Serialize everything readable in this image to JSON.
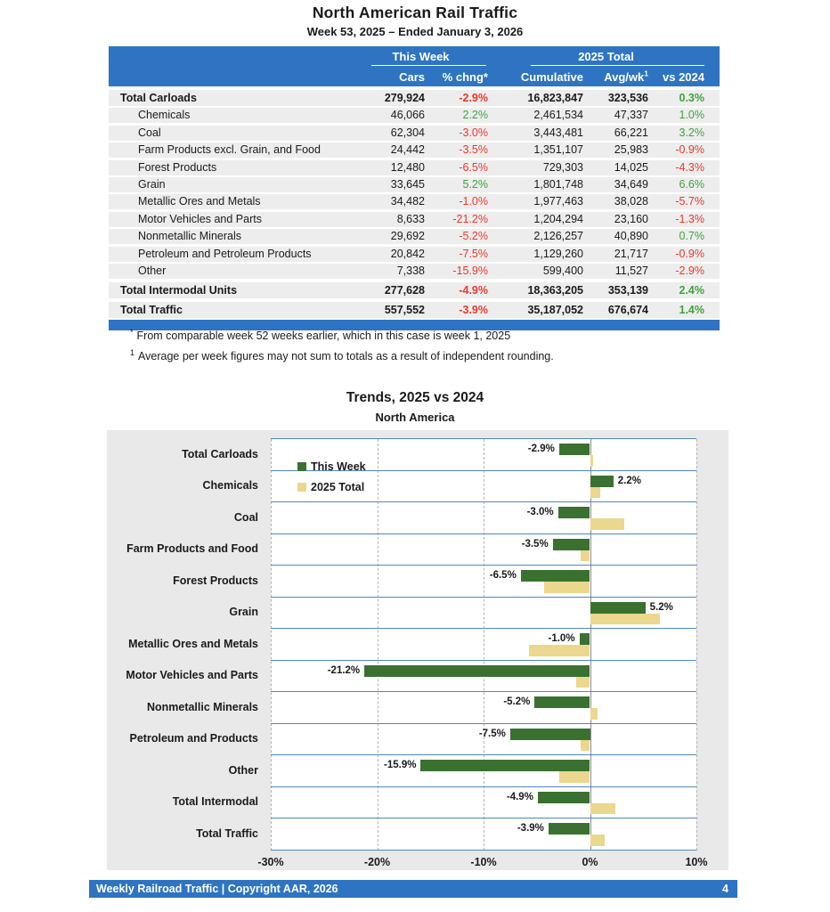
{
  "page": {
    "title": "North American Rail Traffic",
    "subtitle": "Week 53, 2025 – Ended January 3, 2026"
  },
  "colors": {
    "header_blue": "#2E74C2",
    "positive_green": "#3EA33C",
    "negative_red": "#E8392E",
    "bar_green": "#3A7130",
    "bar_tan": "#ECD78E",
    "band_line_blue": "#4F87C9"
  },
  "table": {
    "groups": {
      "this_week": "This Week",
      "total_2025": "2025 Total"
    },
    "columns": {
      "cars": "Cars",
      "chng": "% chng*",
      "cumulative": "Cumulative",
      "avg_wk": "Avg/wk",
      "avg_wk_sup": "1",
      "vs2024": "vs 2024"
    },
    "rows": [
      {
        "label": "Total Carloads",
        "total": true,
        "cars": "279,924",
        "chng": "-2.9%",
        "cumulative": "16,823,847",
        "avg_wk": "323,536",
        "vs2024": "0.3%"
      },
      {
        "label": "Chemicals",
        "total": false,
        "cars": "46,066",
        "chng": "2.2%",
        "cumulative": "2,461,534",
        "avg_wk": "47,337",
        "vs2024": "1.0%"
      },
      {
        "label": "Coal",
        "total": false,
        "cars": "62,304",
        "chng": "-3.0%",
        "cumulative": "3,443,481",
        "avg_wk": "66,221",
        "vs2024": "3.2%"
      },
      {
        "label": "Farm Products excl. Grain, and Food",
        "total": false,
        "cars": "24,442",
        "chng": "-3.5%",
        "cumulative": "1,351,107",
        "avg_wk": "25,983",
        "vs2024": "-0.9%"
      },
      {
        "label": "Forest Products",
        "total": false,
        "cars": "12,480",
        "chng": "-6.5%",
        "cumulative": "729,303",
        "avg_wk": "14,025",
        "vs2024": "-4.3%"
      },
      {
        "label": "Grain",
        "total": false,
        "cars": "33,645",
        "chng": "5.2%",
        "cumulative": "1,801,748",
        "avg_wk": "34,649",
        "vs2024": "6.6%"
      },
      {
        "label": "Metallic Ores and Metals",
        "total": false,
        "cars": "34,482",
        "chng": "-1.0%",
        "cumulative": "1,977,463",
        "avg_wk": "38,028",
        "vs2024": "-5.7%"
      },
      {
        "label": "Motor Vehicles and Parts",
        "total": false,
        "cars": "8,633",
        "chng": "-21.2%",
        "cumulative": "1,204,294",
        "avg_wk": "23,160",
        "vs2024": "-1.3%"
      },
      {
        "label": "Nonmetallic Minerals",
        "total": false,
        "cars": "29,692",
        "chng": "-5.2%",
        "cumulative": "2,126,257",
        "avg_wk": "40,890",
        "vs2024": "0.7%"
      },
      {
        "label": "Petroleum and Petroleum Products",
        "total": false,
        "cars": "20,842",
        "chng": "-7.5%",
        "cumulative": "1,129,260",
        "avg_wk": "21,717",
        "vs2024": "-0.9%"
      },
      {
        "label": "Other",
        "total": false,
        "cars": "7,338",
        "chng": "-15.9%",
        "cumulative": "599,400",
        "avg_wk": "11,527",
        "vs2024": "-2.9%"
      },
      {
        "label": "Total Intermodal Units",
        "total": true,
        "cars": "277,628",
        "chng": "-4.9%",
        "cumulative": "18,363,205",
        "avg_wk": "353,139",
        "vs2024": "2.4%"
      },
      {
        "label": "Total Traffic",
        "total": true,
        "cars": "557,552",
        "chng": "-3.9%",
        "cumulative": "35,187,052",
        "avg_wk": "676,674",
        "vs2024": "1.4%"
      }
    ]
  },
  "footnotes": [
    {
      "marker": "*",
      "text": "From comparable week 52 weeks earlier, which in this case is week 1, 2025"
    },
    {
      "marker": "1",
      "text": "Average per week figures may not sum to totals as a result of independent rounding."
    }
  ],
  "chart_data": {
    "type": "bar",
    "orientation": "horizontal",
    "title": "Trends, 2025 vs 2024",
    "subtitle": "North America",
    "xlim": [
      -30,
      10
    ],
    "ticks": [
      {
        "value": -30,
        "label": "-30%"
      },
      {
        "value": -20,
        "label": "-20%"
      },
      {
        "value": -10,
        "label": "-10%"
      },
      {
        "value": 0,
        "label": "0%"
      },
      {
        "value": 10,
        "label": "10%"
      }
    ],
    "grid": "vertical-dashed",
    "legend_position": "top-left-inside",
    "categories": [
      "Total Carloads",
      "Chemicals",
      "Coal",
      "Farm Products and Food",
      "Forest Products",
      "Grain",
      "Metallic Ores and Metals",
      "Motor Vehicles and Parts",
      "Nonmetallic Minerals",
      "Petroleum and Products",
      "Other",
      "Total Intermodal",
      "Total Traffic"
    ],
    "series": [
      {
        "name": "This Week",
        "color": "#3A7130",
        "values": [
          -2.9,
          2.2,
          -3.0,
          -3.5,
          -6.5,
          5.2,
          -1.0,
          -21.2,
          -5.2,
          -7.5,
          -15.9,
          -4.9,
          -3.9
        ],
        "labels": [
          "-2.9%",
          "2.2%",
          "-3.0%",
          "-3.5%",
          "-6.5%",
          "5.2%",
          "-1.0%",
          "-21.2%",
          "-5.2%",
          "-7.5%",
          "-15.9%",
          "-4.9%",
          "-3.9%"
        ]
      },
      {
        "name": "2025 Total",
        "color": "#ECD78E",
        "values": [
          0.3,
          1.0,
          3.2,
          -0.9,
          -4.3,
          6.6,
          -5.7,
          -1.3,
          0.7,
          -0.9,
          -2.9,
          2.4,
          1.4
        ]
      }
    ]
  },
  "footer": {
    "text": "Weekly Railroad Traffic | Copyright AAR, 2026",
    "page": "4"
  }
}
